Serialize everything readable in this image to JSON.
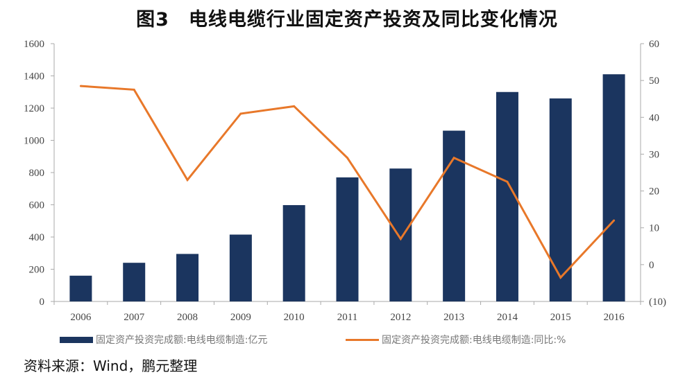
{
  "title": {
    "figure": "图3",
    "text": "电线电缆行业固定资产投资及同比变化情况"
  },
  "source": "资料来源：Wind，鹏元整理",
  "colors": {
    "bar": "#1b355f",
    "line": "#e8782a",
    "negative_tick": "#c0304a"
  },
  "chart_data": {
    "type": "bar+line",
    "title": "图3 电线电缆行业固定资产投资及同比变化情况",
    "categories": [
      "2006",
      "2007",
      "2008",
      "2009",
      "2010",
      "2011",
      "2012",
      "2013",
      "2014",
      "2015",
      "2016"
    ],
    "series": [
      {
        "name": "固定资产投资完成额:电线电缆制造:亿元",
        "type": "bar",
        "axis": "left",
        "values": [
          160,
          240,
          295,
          415,
          598,
          770,
          825,
          1060,
          1300,
          1260,
          1410
        ]
      },
      {
        "name": "固定资产投资完成额:电线电缆制造:同比:%",
        "type": "line",
        "axis": "right",
        "values": [
          48.5,
          47.5,
          23,
          41,
          43,
          29,
          7,
          29,
          22.5,
          -3.5,
          12
        ]
      }
    ],
    "left_axis": {
      "ylim": [
        0,
        1600
      ],
      "ticks": [
        "0",
        "200",
        "400",
        "600",
        "800",
        "1000",
        "1200",
        "1400",
        "1600"
      ]
    },
    "right_axis": {
      "ylim": [
        -10,
        60
      ],
      "ticks": [
        "(10)",
        "0",
        "10",
        "20",
        "30",
        "40",
        "50",
        "60"
      ]
    },
    "grid": false,
    "legend": "bottom"
  }
}
